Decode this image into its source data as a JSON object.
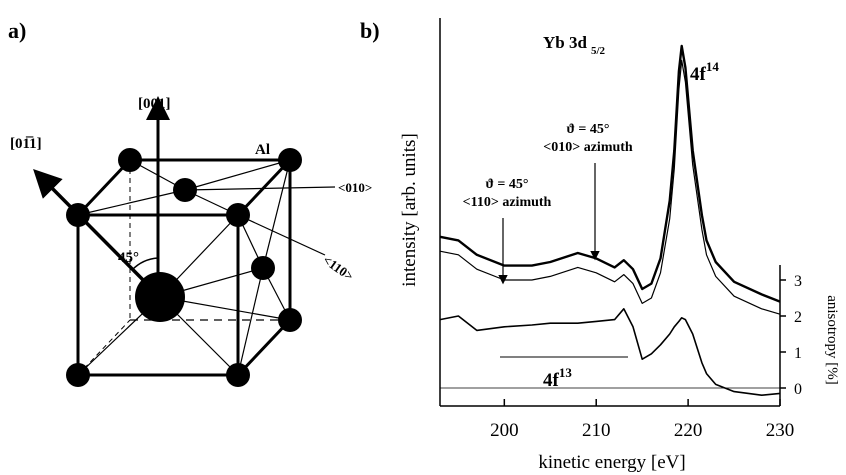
{
  "panels": {
    "a": {
      "label": "a)",
      "axis_001": "[001]",
      "axis_0m11": "[01̅1]",
      "atom": "Al",
      "dir_010": "<010>",
      "dir_110": "<110>",
      "angle": "45°"
    },
    "b": {
      "label": "b)"
    }
  },
  "chart_data": {
    "type": "line",
    "title": {
      "text": "Yb 3d",
      "sub": "5/2"
    },
    "xlabel": "kinetic energy [eV]",
    "ylabel": "intensity [arb. units]",
    "y2label": "anisotropy [%]",
    "peak_label": {
      "text": "4f",
      "sup": "14"
    },
    "bracket_label": {
      "text": "4f",
      "sup": "13"
    },
    "annotations": [
      {
        "theta": "ϑ = 45°",
        "azimuth": "<110> azimuth"
      },
      {
        "theta": "ϑ = 45°",
        "azimuth": "<010> azimuth"
      }
    ],
    "xlim": [
      193,
      230
    ],
    "xticks": [
      200,
      210,
      220,
      230
    ],
    "ylim": [
      -0.5,
      10
    ],
    "yticks": [
      0,
      1,
      2,
      3
    ],
    "yaxis_side": "right",
    "x": [
      193,
      195,
      197,
      200,
      203,
      205,
      208,
      210,
      212,
      213,
      214,
      215,
      216,
      217,
      218,
      218.5,
      219,
      219.3,
      219.7,
      220.5,
      221.5,
      222,
      223,
      225,
      228,
      230
    ],
    "series": [
      {
        "color": "#000000",
        "values": [
          4.2,
          4.1,
          3.7,
          3.4,
          3.4,
          3.5,
          3.75,
          3.6,
          3.35,
          3.55,
          3.3,
          2.75,
          2.9,
          3.6,
          5.2,
          6.6,
          8.8,
          9.5,
          8.9,
          6.6,
          4.8,
          4.1,
          3.5,
          2.95,
          2.6,
          2.4
        ]
      },
      {
        "color": "#000000",
        "values": [
          3.8,
          3.7,
          3.3,
          3.0,
          3.0,
          3.1,
          3.35,
          3.2,
          2.95,
          3.15,
          2.9,
          2.35,
          2.5,
          3.2,
          4.7,
          6.1,
          8.3,
          9.1,
          8.5,
          6.2,
          4.4,
          3.7,
          3.1,
          2.55,
          2.2,
          2.05
        ]
      },
      {
        "color": "#000000",
        "values": [
          1.9,
          2.0,
          1.6,
          1.7,
          1.75,
          1.8,
          1.8,
          1.85,
          1.9,
          2.2,
          1.7,
          0.8,
          0.95,
          1.2,
          1.5,
          1.7,
          1.85,
          1.95,
          1.9,
          1.5,
          0.7,
          0.4,
          0.1,
          -0.1,
          -0.2,
          -0.15
        ]
      }
    ]
  }
}
